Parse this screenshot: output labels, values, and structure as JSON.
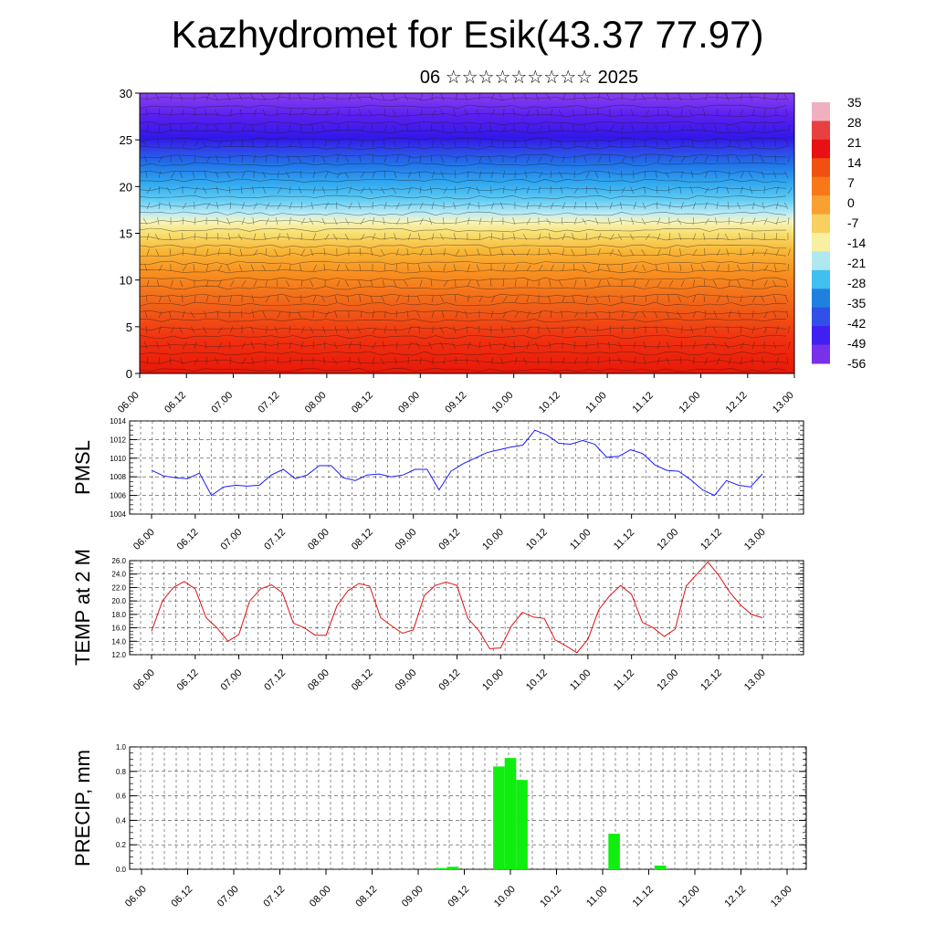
{
  "title": "Kazhydromet for Esik(43.37 77.97)",
  "subtitle": "06 ☆☆☆☆☆☆☆☆☆ 2025",
  "time_labels": [
    "06.00",
    "06.12",
    "07.00",
    "07.12",
    "08.00",
    "08.12",
    "09.00",
    "09.12",
    "10.00",
    "10.12",
    "11.00",
    "11.12",
    "12.00",
    "12.12",
    "13.00"
  ],
  "chart_data": [
    {
      "type": "heatmap",
      "name_note": "",
      "x": [
        "06.00",
        "06.12",
        "07.00",
        "07.12",
        "08.00",
        "08.12",
        "09.00",
        "09.12",
        "10.00",
        "10.12",
        "11.00",
        "11.12",
        "12.00",
        "12.12",
        "13.00"
      ],
      "ylim": [
        0,
        30
      ],
      "yticks": [
        0,
        5,
        10,
        15,
        20,
        25,
        30
      ],
      "colorbar_labels": [
        "35",
        "28",
        "21",
        "14",
        "7",
        "0",
        "-7",
        "-14",
        "-21",
        "-28",
        "-35",
        "-42",
        "-49",
        "-56"
      ],
      "colorbar_colors": [
        "#f0b0c0",
        "#e84040",
        "#e81010",
        "#f05010",
        "#f87818",
        "#f8a030",
        "#f8d060",
        "#f8f0a0",
        "#b0e8f0",
        "#40c0f0",
        "#2080e0",
        "#3050e8",
        "#4020f0",
        "#7830e8"
      ],
      "temperature_by_height": [
        {
          "height": 0,
          "temp": 24
        },
        {
          "height": 5,
          "temp": 14
        },
        {
          "height": 10,
          "temp": 4
        },
        {
          "height": 15,
          "temp": -8
        },
        {
          "height": 20,
          "temp": -30
        },
        {
          "height": 25,
          "temp": -56
        },
        {
          "height": 30,
          "temp": -50
        }
      ]
    },
    {
      "type": "line",
      "ylabel": "PMSL",
      "ylim": [
        1004,
        1014
      ],
      "yticks": [
        "1004",
        "1006",
        "1008",
        "1010",
        "1012",
        "1014"
      ],
      "series": [
        {
          "color": "#1a1aff",
          "values": [
            1008.7,
            1008.1,
            1007.9,
            1007.8,
            1008.4,
            1006.0,
            1006.9,
            1007.1,
            1007.0,
            1007.1,
            1008.2,
            1008.8,
            1007.8,
            1008.2,
            1009.2,
            1009.2,
            1007.9,
            1007.6,
            1008.2,
            1008.3,
            1008.0,
            1008.2,
            1008.8,
            1008.8,
            1006.6,
            1008.6,
            1009.4,
            1010.0,
            1010.6,
            1010.9,
            1011.2,
            1011.4,
            1013.0,
            1012.5,
            1011.6,
            1011.5,
            1011.9,
            1011.5,
            1010.1,
            1010.2,
            1010.9,
            1010.5,
            1009.3,
            1008.7,
            1008.6,
            1007.7,
            1006.6,
            1006.0,
            1007.6,
            1007.1,
            1006.9,
            1008.3
          ]
        }
      ]
    },
    {
      "type": "line",
      "ylabel": "TEMP at 2 M",
      "ylim": [
        12,
        26
      ],
      "yticks": [
        "12.0",
        "14.0",
        "16.0",
        "18.0",
        "20.0",
        "22.0",
        "24.0",
        "26.0"
      ],
      "series": [
        {
          "color": "#e01010",
          "values": [
            15.5,
            20.0,
            22.0,
            22.9,
            21.8,
            17.5,
            16.0,
            14.0,
            15.0,
            20.0,
            21.8,
            22.4,
            21.2,
            16.7,
            16.0,
            14.9,
            14.9,
            19.3,
            21.5,
            22.6,
            22.2,
            17.5,
            16.3,
            15.2,
            15.7,
            20.8,
            22.3,
            22.8,
            22.3,
            17.4,
            15.6,
            12.9,
            13.0,
            16.3,
            18.3,
            17.6,
            17.4,
            14.2,
            13.3,
            12.3,
            14.3,
            18.7,
            20.8,
            22.3,
            21.0,
            16.8,
            16.0,
            14.7,
            15.8,
            22.2,
            24.0,
            25.8,
            23.8,
            21.3,
            19.4,
            18.0,
            17.5
          ]
        }
      ]
    },
    {
      "type": "bar",
      "ylabel": "PRECIP, mm",
      "ylim": [
        0,
        1
      ],
      "yticks": [
        "0.0",
        "0.2",
        "0.4",
        "0.6",
        "0.8",
        "1.0"
      ],
      "color": "#10ee10",
      "bars": [
        {
          "step": 26,
          "value": 0.01
        },
        {
          "step": 27,
          "value": 0.02
        },
        {
          "step": 31,
          "value": 0.84
        },
        {
          "step": 32,
          "value": 0.91
        },
        {
          "step": 33,
          "value": 0.73
        },
        {
          "step": 41,
          "value": 0.29
        },
        {
          "step": 45,
          "value": 0.03
        }
      ]
    }
  ]
}
